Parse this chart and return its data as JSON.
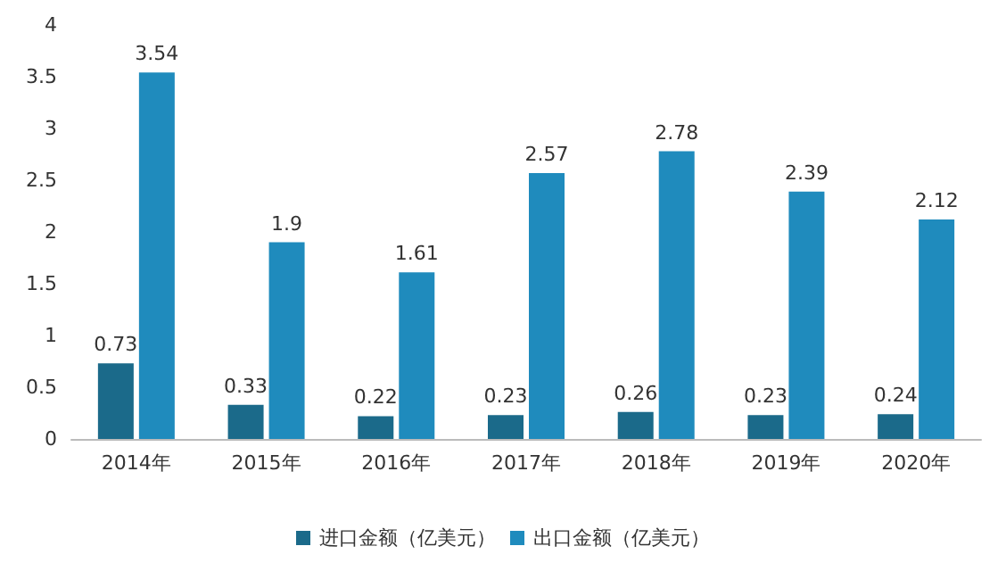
{
  "chart_data": {
    "type": "bar",
    "categories": [
      "2014年",
      "2015年",
      "2016年",
      "2017年",
      "2018年",
      "2019年",
      "2020年"
    ],
    "series": [
      {
        "name": "进口金额（亿美元）",
        "color": "#1b6a8a",
        "values": [
          0.73,
          0.33,
          0.22,
          0.23,
          0.26,
          0.23,
          0.24
        ]
      },
      {
        "name": "出口金额（亿美元）",
        "color": "#1f8bbd",
        "values": [
          3.54,
          1.9,
          1.61,
          2.57,
          2.78,
          2.39,
          2.12
        ]
      }
    ],
    "ylim": [
      0,
      4
    ],
    "yticks": [
      0,
      0.5,
      1,
      1.5,
      2,
      2.5,
      3,
      3.5,
      4
    ],
    "grid": false,
    "legend": "bottom",
    "data_labels": true
  }
}
